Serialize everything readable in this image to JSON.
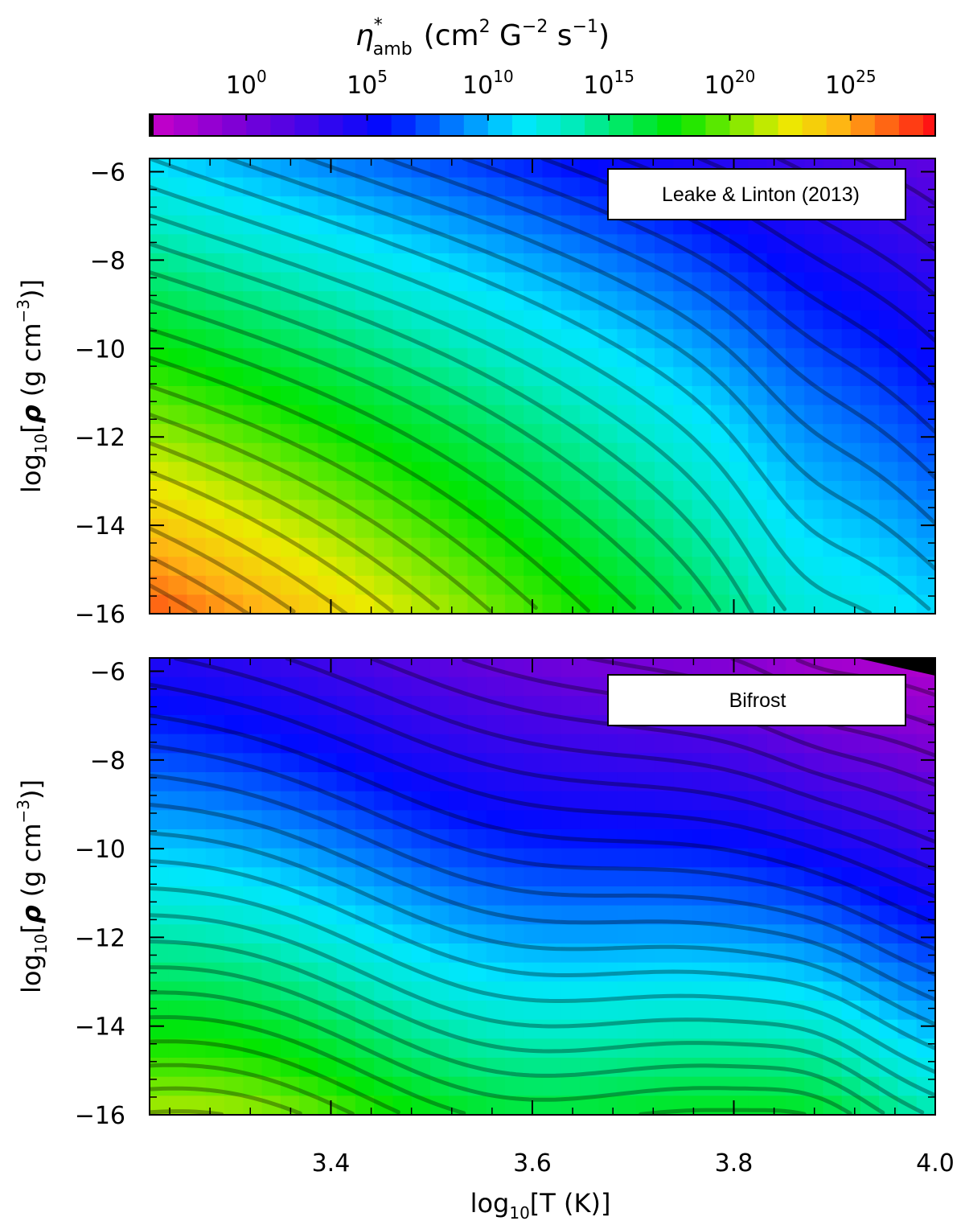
{
  "colorbar": {
    "title_symbol": "η",
    "title_superscript": "*",
    "title_subscript": "amb",
    "title_units": "(cm",
    "title_units_exp1": "2",
    "title_units_mid": " G",
    "title_units_exp2": "−2",
    "title_units_mid2": " s",
    "title_units_exp3": "−1",
    "title_units_close": ")",
    "tick_base": "10",
    "ticks": [
      {
        "exp": "0",
        "value": 0
      },
      {
        "exp": "5",
        "value": 5
      },
      {
        "exp": "10",
        "value": 10
      },
      {
        "exp": "15",
        "value": 15
      },
      {
        "exp": "20",
        "value": 20
      },
      {
        "exp": "25",
        "value": 25
      }
    ],
    "range_log10": [
      -4,
      28.5
    ]
  },
  "axes": {
    "ylabel_prefix": "log",
    "ylabel_sub": "10",
    "ylabel_open": "[",
    "ylabel_rho": "ρ",
    "ylabel_units": " (g cm",
    "ylabel_exp": "−3",
    "ylabel_close": ")]",
    "xlabel_prefix": "log",
    "xlabel_sub": "10",
    "xlabel_rest": "[T (K)]",
    "x_ticks": [
      "3.4",
      "3.6",
      "3.8",
      "4.0"
    ],
    "y_ticks": [
      "−6",
      "−8",
      "−10",
      "−12",
      "−14",
      "−16"
    ]
  },
  "chart_data": [
    {
      "type": "heatmap",
      "legend_label": "Leake & Linton (2013)",
      "legend_position": "top-right",
      "xlim": [
        3.22,
        4.0
      ],
      "ylim": [
        -16,
        -5.7
      ],
      "x_ticks": [
        3.4,
        3.6,
        3.8,
        4.0
      ],
      "y_ticks": [
        -6,
        -8,
        -10,
        -12,
        -14,
        -16
      ],
      "contours": "black, every 1 decade of log10 eta",
      "approx_log10_eta": {
        "top_left": 11,
        "top_right": 1,
        "bottom_left": 27,
        "bottom_right": 11
      }
    },
    {
      "type": "heatmap",
      "legend_label": "Bifrost",
      "legend_position": "top-right",
      "xlim": [
        3.22,
        4.0
      ],
      "ylim": [
        -16,
        -5.7
      ],
      "x_ticks": [
        3.4,
        3.6,
        3.8,
        4.0
      ],
      "y_ticks": [
        -6,
        -8,
        -10,
        -12,
        -14,
        -16
      ],
      "contours": "black, every 1 decade of log10 eta",
      "approx_log10_eta": {
        "top_left": 4,
        "top_right": -3,
        "bottom_left": 18,
        "bottom_right": 12
      }
    }
  ]
}
